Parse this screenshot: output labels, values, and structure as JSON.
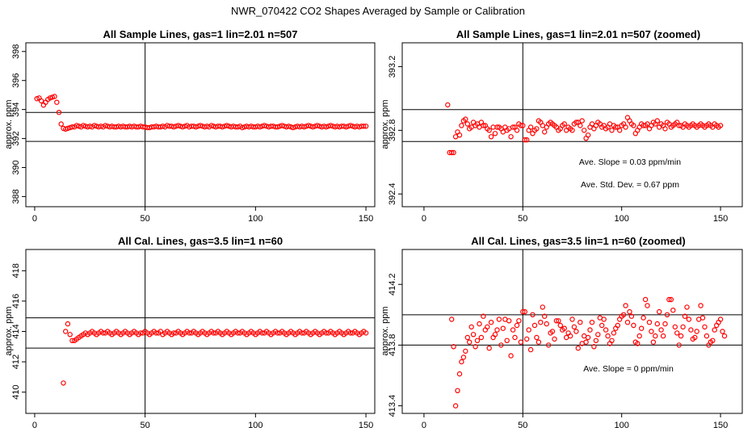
{
  "title": "NWR_070422  CO2 Shapes Averaged by Sample or Calibration",
  "colors": {
    "points": "#ff0000",
    "axes": "#000000",
    "background": "#ffffff"
  },
  "chart_data": [
    {
      "type": "scatter",
      "title": "All Sample Lines, gas=1 lin=2.01 n=507",
      "xlabel": "",
      "ylabel": "approx. ppm",
      "xlim": [
        -4,
        154
      ],
      "ylim": [
        387.3,
        398.6
      ],
      "xticks": [
        0,
        50,
        100,
        150
      ],
      "yticks": [
        388,
        390,
        392,
        394,
        396,
        398
      ],
      "vline": 50,
      "hlines": [
        391.8,
        393.8
      ],
      "annotations": [],
      "x_start": 1,
      "y": [
        394.75,
        394.8,
        394.6,
        394.3,
        394.5,
        394.7,
        394.8,
        394.85,
        394.9,
        394.5,
        393.8,
        393.0,
        392.7,
        392.65,
        392.7,
        392.75,
        392.8,
        392.8,
        392.9,
        392.85,
        392.8,
        392.9,
        392.85,
        392.8,
        392.85,
        392.8,
        392.9,
        392.85,
        392.8,
        392.85,
        392.8,
        392.9,
        392.85,
        392.8,
        392.85,
        392.8,
        392.8,
        392.85,
        392.8,
        392.85,
        392.8,
        392.8,
        392.85,
        392.8,
        392.85,
        392.8,
        392.8,
        392.85,
        392.8,
        392.8,
        392.75,
        392.75,
        392.8,
        392.8,
        392.85,
        392.8,
        392.8,
        392.85,
        392.8,
        392.9,
        392.85,
        392.85,
        392.8,
        392.85,
        392.9,
        392.85,
        392.8,
        392.85,
        392.9,
        392.8,
        392.85,
        392.85,
        392.8,
        392.85,
        392.9,
        392.85,
        392.8,
        392.85,
        392.8,
        392.9,
        392.85,
        392.8,
        392.85,
        392.85,
        392.8,
        392.85,
        392.9,
        392.85,
        392.8,
        392.85,
        392.8,
        392.8,
        392.85,
        392.75,
        392.8,
        392.85,
        392.8,
        392.85,
        392.8,
        392.8,
        392.85,
        392.8,
        392.85,
        392.9,
        392.85,
        392.8,
        392.85,
        392.85,
        392.8,
        392.8,
        392.85,
        392.9,
        392.85,
        392.8,
        392.85,
        392.8,
        392.75,
        392.8,
        392.85,
        392.8,
        392.85,
        392.8,
        392.85,
        392.9,
        392.85,
        392.8,
        392.85,
        392.9,
        392.85,
        392.8,
        392.85,
        392.8,
        392.85,
        392.9,
        392.85,
        392.8,
        392.85,
        392.8,
        392.85,
        392.85,
        392.8,
        392.85,
        392.9,
        392.85,
        392.8,
        392.85,
        392.8,
        392.85,
        392.85,
        392.85
      ]
    },
    {
      "type": "scatter",
      "title": "All Sample Lines, gas=1 lin=2.01 n=507 (zoomed)",
      "xlabel": "",
      "ylabel": "approx. ppm",
      "xlim": [
        -11,
        161
      ],
      "ylim": [
        392.32,
        393.35
      ],
      "xticks": [
        0,
        50,
        100,
        150
      ],
      "yticks": [
        392.4,
        392.8,
        393.2
      ],
      "vline": 50,
      "hlines": [
        392.73,
        392.93
      ],
      "annotations": [
        "Ave. Slope =  0.03  ppm/min",
        "Ave. Std. Dev. =  0.67  ppm"
      ],
      "x_start": 12,
      "y": [
        392.96,
        392.66,
        392.66,
        392.66,
        392.76,
        392.79,
        392.77,
        392.83,
        392.86,
        392.87,
        392.84,
        392.81,
        392.82,
        392.85,
        392.83,
        392.84,
        392.82,
        392.85,
        392.83,
        392.83,
        392.81,
        392.8,
        392.76,
        392.82,
        392.78,
        392.82,
        392.82,
        392.81,
        392.79,
        392.82,
        392.8,
        392.81,
        392.76,
        392.82,
        392.82,
        392.8,
        392.84,
        392.83,
        392.83,
        392.74,
        392.74,
        392.8,
        392.82,
        392.78,
        392.8,
        392.81,
        392.86,
        392.85,
        392.83,
        392.79,
        392.82,
        392.84,
        392.85,
        392.84,
        392.83,
        392.82,
        392.8,
        392.81,
        392.83,
        392.84,
        392.8,
        392.82,
        392.81,
        392.8,
        392.84,
        392.85,
        392.85,
        392.83,
        392.86,
        392.8,
        392.75,
        392.77,
        392.82,
        392.84,
        392.81,
        392.83,
        392.85,
        392.84,
        392.82,
        392.83,
        392.81,
        392.82,
        392.84,
        392.8,
        392.83,
        392.82,
        392.82,
        392.8,
        392.83,
        392.84,
        392.82,
        392.88,
        392.86,
        392.84,
        392.83,
        392.78,
        392.8,
        392.82,
        392.84,
        392.83,
        392.83,
        392.84,
        392.81,
        392.83,
        392.85,
        392.84,
        392.86,
        392.82,
        392.84,
        392.83,
        392.81,
        392.85,
        392.84,
        392.82,
        392.83,
        392.84,
        392.85,
        392.83,
        392.83,
        392.82,
        392.84,
        392.83,
        392.82,
        392.83,
        392.84,
        392.83,
        392.82,
        392.83,
        392.84,
        392.83,
        392.82,
        392.83,
        392.84,
        392.83,
        392.82,
        392.84,
        392.83,
        392.82,
        392.83
      ]
    },
    {
      "type": "scatter",
      "title": "All Cal. Lines, gas=3.5 lin=1 n=60",
      "xlabel": "",
      "ylabel": "approx. ppm",
      "xlim": [
        -4,
        154
      ],
      "ylim": [
        408.6,
        419.4
      ],
      "xticks": [
        0,
        50,
        100,
        150
      ],
      "yticks": [
        410,
        412,
        414,
        416,
        418
      ],
      "vline": 50,
      "hlines": [
        412.9,
        414.9
      ],
      "annotations": [],
      "x_start": 13,
      "y": [
        410.6,
        414.0,
        414.5,
        413.8,
        413.4,
        413.4,
        413.5,
        413.6,
        413.7,
        413.8,
        413.9,
        413.8,
        413.9,
        414.0,
        413.9,
        413.8,
        413.9,
        414.0,
        413.9,
        413.9,
        414.0,
        413.9,
        413.8,
        413.9,
        414.0,
        413.9,
        413.8,
        413.9,
        414.0,
        413.9,
        413.8,
        413.9,
        414.0,
        413.9,
        413.8,
        413.9,
        413.9,
        414.0,
        413.9,
        413.8,
        413.9,
        414.0,
        413.9,
        413.9,
        414.0,
        413.8,
        413.9,
        414.0,
        413.9,
        413.8,
        413.9,
        413.9,
        414.0,
        413.9,
        413.8,
        413.9,
        414.0,
        413.9,
        413.9,
        414.0,
        413.9,
        413.8,
        413.9,
        414.0,
        413.9,
        413.8,
        413.9,
        414.0,
        413.9,
        413.9,
        414.0,
        413.9,
        413.8,
        413.9,
        414.0,
        413.9,
        413.8,
        413.9,
        414.0,
        413.9,
        413.9,
        414.0,
        413.9,
        413.8,
        413.9,
        414.0,
        413.9,
        413.8,
        413.9,
        414.0,
        413.9,
        413.9,
        414.0,
        413.9,
        413.8,
        413.9,
        414.0,
        413.9,
        413.9,
        414.0,
        413.9,
        413.8,
        413.9,
        414.0,
        413.9,
        413.8,
        413.9,
        414.0,
        413.9,
        413.9,
        414.0,
        413.9,
        413.8,
        413.9,
        414.0,
        413.9,
        413.8,
        413.9,
        414.0,
        413.9,
        413.9,
        414.0,
        413.9,
        413.8,
        413.9,
        414.0,
        413.9,
        413.8,
        413.9,
        414.0,
        413.9,
        413.9,
        414.0,
        413.9,
        413.8,
        413.9,
        414.0,
        413.9
      ]
    },
    {
      "type": "scatter",
      "title": "All Cal. Lines, gas=3.5 lin=1 n=60 (zoomed)",
      "xlabel": "",
      "ylabel": "approx. ppm",
      "xlim": [
        -11,
        161
      ],
      "ylim": [
        413.35,
        414.43
      ],
      "xticks": [
        0,
        50,
        100,
        150
      ],
      "yticks": [
        413.4,
        413.8,
        414.2
      ],
      "vline": 50,
      "hlines": [
        413.8,
        414.0
      ],
      "annotations": [
        "Ave. Slope =  0  ppm/min"
      ],
      "x_start": 14,
      "y": [
        413.97,
        413.79,
        413.4,
        413.5,
        413.61,
        413.69,
        413.72,
        413.76,
        413.85,
        413.82,
        413.92,
        413.87,
        413.79,
        413.83,
        413.94,
        413.85,
        413.99,
        413.9,
        413.92,
        413.78,
        413.95,
        413.85,
        413.87,
        413.9,
        413.97,
        413.8,
        413.91,
        413.97,
        413.83,
        413.96,
        413.73,
        413.9,
        413.85,
        413.93,
        413.96,
        413.82,
        414.02,
        414.02,
        413.84,
        413.9,
        413.77,
        414.0,
        413.93,
        413.85,
        413.82,
        413.95,
        414.05,
        413.99,
        413.94,
        413.8,
        413.88,
        413.89,
        413.84,
        413.96,
        413.96,
        413.93,
        413.9,
        413.91,
        413.85,
        413.88,
        413.86,
        413.97,
        413.92,
        413.89,
        413.78,
        413.95,
        413.81,
        413.86,
        413.82,
        413.85,
        413.9,
        413.95,
        413.79,
        413.83,
        413.87,
        413.98,
        413.93,
        413.97,
        413.9,
        413.86,
        413.81,
        413.83,
        413.88,
        413.91,
        413.93,
        413.97,
        413.99,
        414.0,
        414.06,
        413.95,
        414.02,
        413.99,
        413.93,
        413.82,
        413.81,
        413.86,
        413.91,
        413.98,
        414.1,
        414.06,
        413.95,
        413.89,
        413.82,
        413.86,
        413.94,
        414.02,
        413.9,
        413.86,
        413.94,
        414.0,
        414.1,
        414.1,
        414.03,
        413.92,
        413.88,
        413.8,
        413.86,
        413.92,
        413.99,
        414.05,
        413.97,
        413.9,
        413.84,
        413.85,
        413.89,
        413.97,
        414.06,
        413.98,
        413.92,
        413.86,
        413.8,
        413.82,
        413.83,
        413.9,
        413.93,
        413.95,
        413.97,
        413.89,
        413.86
      ]
    }
  ]
}
